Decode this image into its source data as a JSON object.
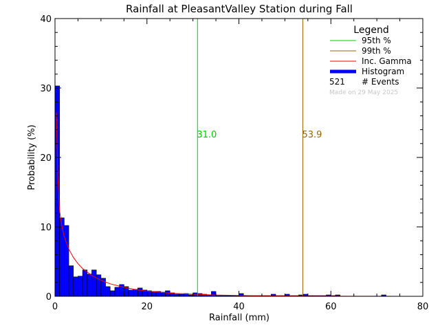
{
  "chart_data": {
    "type": "bar",
    "title": "Rainfall at PleasantValley Station during Fall",
    "xlabel": "Rainfall (mm)",
    "ylabel": "Probability (%)",
    "xlim": [
      0,
      80
    ],
    "ylim": [
      0,
      40
    ],
    "xticks": [
      0,
      20,
      40,
      60,
      80
    ],
    "yticks": [
      0,
      10,
      20,
      30,
      40
    ],
    "bin_width": 1,
    "bins_start": [
      0,
      1,
      2,
      3,
      4,
      5,
      6,
      7,
      8,
      9,
      10,
      11,
      12,
      13,
      14,
      15,
      16,
      17,
      18,
      19,
      20,
      21,
      22,
      23,
      24,
      25,
      26,
      27,
      28,
      29,
      30,
      31,
      32,
      33,
      34,
      35,
      36,
      37,
      38,
      39,
      40,
      41,
      42,
      43,
      44,
      45,
      46,
      47,
      48,
      49,
      50,
      51,
      52,
      53,
      54,
      55,
      56,
      57,
      58,
      59,
      60,
      61,
      62,
      63,
      64,
      65,
      66,
      67,
      68,
      69,
      70,
      71,
      72,
      73,
      74,
      75,
      76,
      77,
      78,
      79
    ],
    "histogram": [
      30.3,
      11.3,
      10.2,
      4.4,
      2.8,
      2.9,
      3.8,
      3.2,
      3.8,
      3.1,
      2.6,
      1.4,
      0.8,
      1.3,
      1.7,
      1.4,
      0.9,
      1.0,
      1.2,
      0.9,
      0.8,
      0.7,
      0.7,
      0.6,
      0.8,
      0.5,
      0.3,
      0.3,
      0.4,
      0.2,
      0.5,
      0.4,
      0.3,
      0.2,
      0.7,
      0.1,
      0.1,
      0.1,
      0.1,
      0.1,
      0.4,
      0.1,
      0.1,
      0.1,
      0.1,
      0.1,
      0.1,
      0.3,
      0.1,
      0.1,
      0.3,
      0.1,
      0.1,
      0.2,
      0.3,
      0.1,
      0.1,
      0.1,
      0.1,
      0.2,
      0.1,
      0.2,
      0,
      0,
      0,
      0,
      0,
      0,
      0,
      0,
      0,
      0.2,
      0,
      0,
      0,
      0,
      0,
      0,
      0,
      0
    ],
    "gamma_curve": {
      "x": [
        0.3,
        0.6,
        1,
        1.5,
        2,
        3,
        4,
        5,
        6,
        8,
        10,
        12,
        15,
        18,
        20,
        25,
        30,
        35,
        40,
        45,
        50,
        55,
        60,
        65,
        70,
        75,
        80
      ],
      "y": [
        26.5,
        17.2,
        12.3,
        10.1,
        8.6,
        6.8,
        5.6,
        4.7,
        4.0,
        3.0,
        2.3,
        1.8,
        1.3,
        0.9,
        0.75,
        0.45,
        0.3,
        0.18,
        0.12,
        0.08,
        0.05,
        0.03,
        0.02,
        0.01,
        0.01,
        0.0,
        0.0
      ]
    },
    "p95": {
      "value": 31.0,
      "label": "31.0",
      "color": "#00cc00"
    },
    "p99": {
      "value": 53.9,
      "label": "53.9",
      "color": "#996600"
    },
    "colors": {
      "histogram_fill": "#0000ff",
      "histogram_edge": "#000000",
      "gamma": "#ee0000",
      "axes": "#000000"
    },
    "legend": {
      "placement": "top-right",
      "title": "Legend",
      "entries": [
        {
          "label": "95th %",
          "color": "#00cc00",
          "style": "line"
        },
        {
          "label": "99th %",
          "color": "#996600",
          "style": "line"
        },
        {
          "label": "Inc. Gamma",
          "color": "#ee0000",
          "style": "line"
        },
        {
          "label": "Histogram",
          "color": "#0000ff",
          "style": "thick"
        }
      ],
      "events_count": "521",
      "events_label": "# Events",
      "made_on": "Made on 29 May 2025"
    }
  }
}
